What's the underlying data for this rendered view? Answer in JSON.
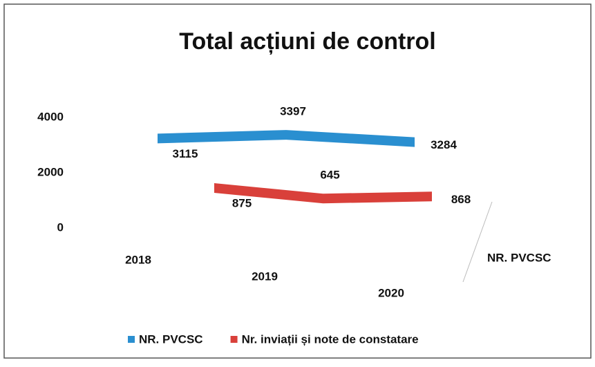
{
  "chart_data": {
    "type": "line3d",
    "title": "Total acțiuni de control",
    "categories": [
      "2018",
      "2019",
      "2020"
    ],
    "series": [
      {
        "name": "NR. PVCSC",
        "color": "#2a8fd0",
        "values": [
          3115,
          3397,
          3284
        ]
      },
      {
        "name": "Nr. inviații și note de constatare",
        "color": "#d9403a",
        "values": [
          875,
          645,
          868
        ]
      }
    ],
    "ylim": [
      0,
      4000
    ],
    "yticks": [
      0,
      2000,
      4000
    ],
    "depth_labels": [
      "NR. PVCSC"
    ],
    "legend": "bottom"
  }
}
